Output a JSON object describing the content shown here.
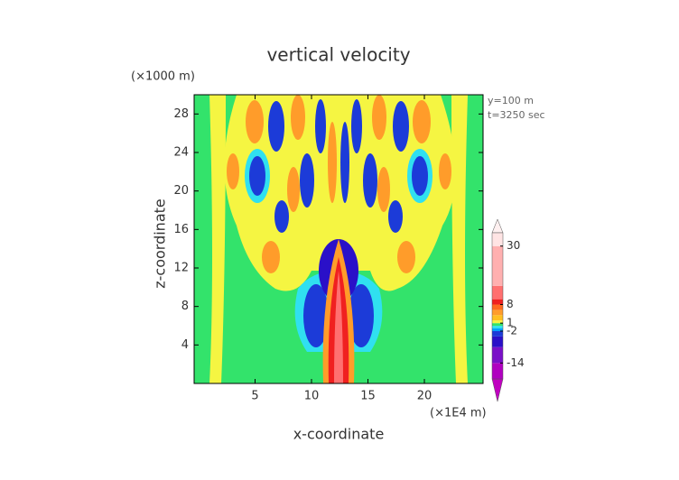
{
  "chart_data": {
    "type": "contour",
    "title": "vertical velocity",
    "xlabel": "x-coordinate",
    "ylabel": "z-coordinate",
    "x_unit": "(×1E4 m)",
    "y_unit": "(×1000 m)",
    "annotations": [
      "y=100 m",
      "t=3250 sec"
    ],
    "xlim": [
      -0.4,
      25.2
    ],
    "xticks": [
      5,
      10,
      15,
      20
    ],
    "ylim": [
      0,
      30
    ],
    "yticks": [
      4,
      8,
      12,
      16,
      20,
      24,
      28
    ],
    "colorbar": {
      "lim": [
        -20,
        35
      ],
      "ticks": [
        30,
        8,
        1,
        -2,
        -14
      ],
      "levels": [
        -20,
        -14,
        -8,
        -4,
        -2,
        -1,
        0,
        1,
        2,
        4,
        6,
        8,
        10,
        15,
        30,
        35
      ],
      "colors": [
        "#b000c0",
        "#7a10c8",
        "#2a10c8",
        "#1c3bd8",
        "#00a0ff",
        "#30e0f0",
        "#33e36b",
        "#f5f542",
        "#ffc020",
        "#ff9c2a",
        "#ff6a20",
        "#f02020",
        "#ff7070",
        "#ffb0b0",
        "#ffe4e4"
      ]
    }
  }
}
